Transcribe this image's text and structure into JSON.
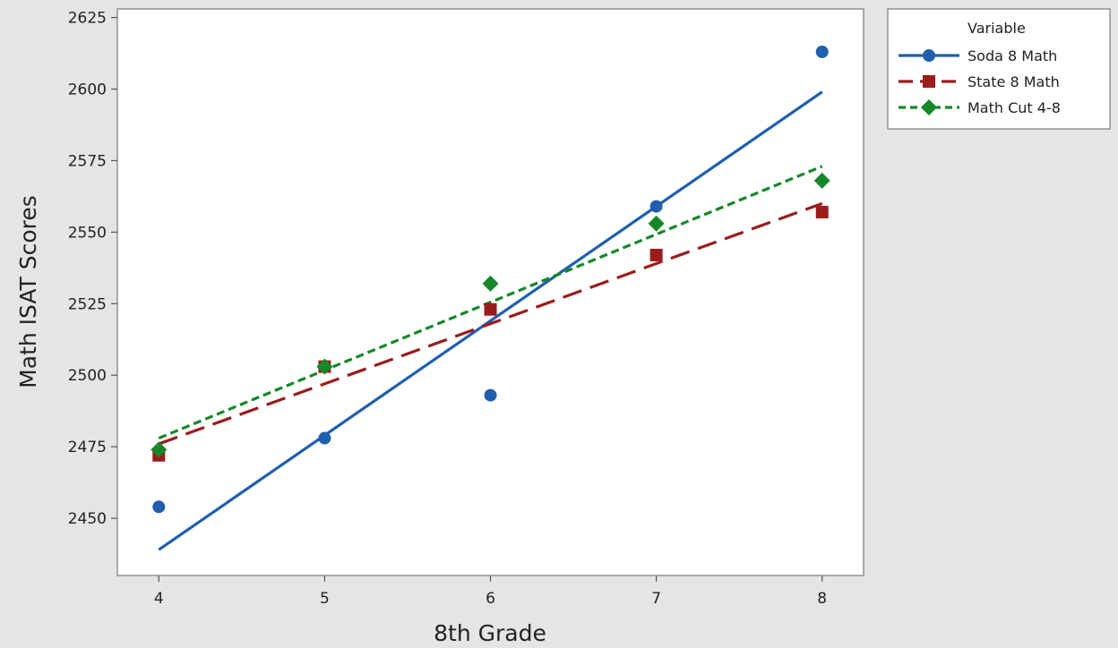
{
  "chart_data": {
    "type": "scatter",
    "xlabel": "8th Grade",
    "ylabel": "Math ISAT Scores",
    "xlim": [
      3.75,
      8.25
    ],
    "ylim": [
      2430,
      2628
    ],
    "xticks": [
      4,
      5,
      6,
      7,
      8
    ],
    "yticks": [
      2450,
      2475,
      2500,
      2525,
      2550,
      2575,
      2600,
      2625
    ],
    "grid": false,
    "legend": {
      "title": "Variable",
      "position": "top-right, outside plot"
    },
    "series": [
      {
        "name": "Soda 8 Math",
        "color": "#1f5fae",
        "marker": "circle",
        "line_style": "solid",
        "x": [
          4,
          5,
          6,
          7,
          8
        ],
        "y": [
          2454,
          2478,
          2493,
          2559,
          2613
        ],
        "fit": [
          [
            4,
            2439
          ],
          [
            8,
            2599
          ]
        ]
      },
      {
        "name": "State 8 Math",
        "color": "#9b1c1c",
        "marker": "square",
        "line_style": "long-dash",
        "x": [
          4,
          5,
          6,
          7,
          8
        ],
        "y": [
          2472,
          2503,
          2523,
          2542,
          2557
        ],
        "fit": [
          [
            4,
            2476
          ],
          [
            8,
            2560
          ]
        ]
      },
      {
        "name": "Math Cut 4-8",
        "color": "#16882a",
        "marker": "diamond",
        "line_style": "short-dash",
        "x": [
          4,
          5,
          6,
          7,
          8
        ],
        "y": [
          2474,
          2503,
          2532,
          2553,
          2568
        ],
        "fit": [
          [
            4,
            2478
          ],
          [
            8,
            2573
          ]
        ]
      }
    ]
  }
}
